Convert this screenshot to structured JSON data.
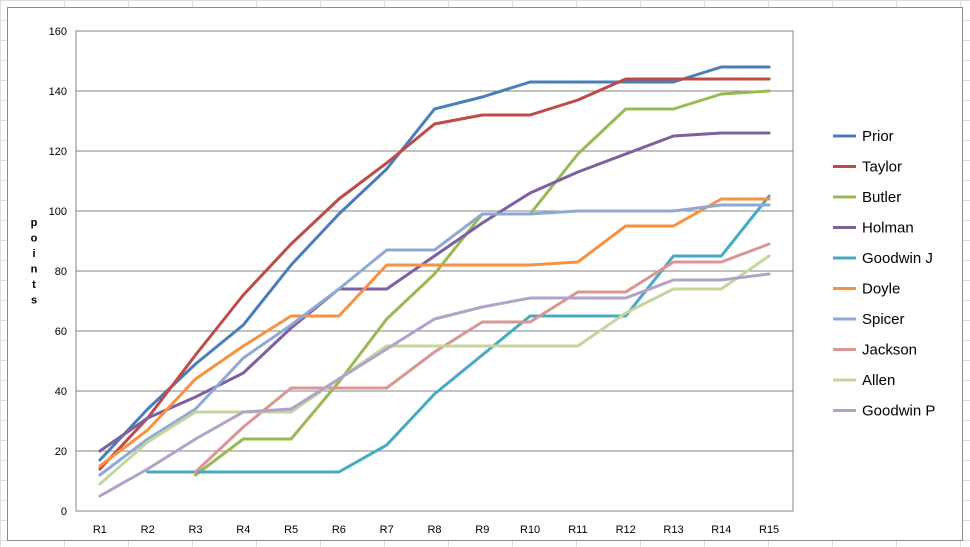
{
  "chart_data": {
    "type": "line",
    "title": "",
    "xlabel": "",
    "ylabel": "points",
    "ylim": [
      0,
      160
    ],
    "yticks": [
      0,
      20,
      40,
      60,
      80,
      100,
      120,
      140,
      160
    ],
    "grid": true,
    "legend_position": "right",
    "categories": [
      "R1",
      "R2",
      "R3",
      "R4",
      "R5",
      "R6",
      "R7",
      "R8",
      "R9",
      "R10",
      "R11",
      "R12",
      "R13",
      "R14",
      "R15"
    ],
    "series": [
      {
        "name": "Prior",
        "color": "#4a7ebb",
        "x": [
          "R1",
          "R2",
          "R3",
          "R4",
          "R5",
          "R6",
          "R7",
          "R8",
          "R9",
          "R10",
          "R11",
          "R12",
          "R13",
          "R14",
          "R15"
        ],
        "values": [
          17,
          34,
          49,
          62,
          82,
          99,
          114,
          134,
          138,
          143,
          143,
          143,
          143,
          148,
          148
        ]
      },
      {
        "name": "Taylor",
        "color": "#be4b48",
        "x": [
          "R1",
          "R2",
          "R3",
          "R4",
          "R5",
          "R6",
          "R7",
          "R8",
          "R9",
          "R10",
          "R11",
          "R12",
          "R13",
          "R14",
          "R15"
        ],
        "values": [
          14,
          31,
          52,
          72,
          89,
          104,
          116,
          129,
          132,
          132,
          137,
          144,
          144,
          144,
          144
        ]
      },
      {
        "name": "Butler",
        "color": "#98b954",
        "x": [
          "R3",
          "R4",
          "R5",
          "R6",
          "R7",
          "R8",
          "R9",
          "R10",
          "R11",
          "R12",
          "R13",
          "R14",
          "R15"
        ],
        "values": [
          12,
          24,
          24,
          43,
          64,
          79,
          99,
          99,
          119,
          134,
          134,
          139,
          140
        ]
      },
      {
        "name": "Holman",
        "color": "#7d60a0",
        "x": [
          "R1",
          "R2",
          "R3",
          "R4",
          "R5",
          "R6",
          "R7",
          "R8",
          "R9",
          "R10",
          "R11",
          "R12",
          "R13",
          "R14",
          "R15"
        ],
        "values": [
          20,
          31,
          38,
          46,
          61,
          74,
          74,
          85,
          96,
          106,
          113,
          119,
          125,
          126,
          126
        ]
      },
      {
        "name": "Goodwin J",
        "color": "#46aac5",
        "x": [
          "R2",
          "R3",
          "R4",
          "R5",
          "R6",
          "R7",
          "R8",
          "R9",
          "R10",
          "R11",
          "R12",
          "R13",
          "R14",
          "R15"
        ],
        "values": [
          13,
          13,
          13,
          13,
          13,
          22,
          39,
          52,
          65,
          65,
          65,
          85,
          85,
          105
        ]
      },
      {
        "name": "Doyle",
        "color": "#f69240",
        "x": [
          "R1",
          "R2",
          "R3",
          "R4",
          "R5",
          "R6",
          "R7",
          "R8",
          "R9",
          "R10",
          "R11",
          "R12",
          "R13",
          "R14",
          "R15"
        ],
        "values": [
          15,
          27,
          44,
          55,
          65,
          65,
          82,
          82,
          82,
          82,
          83,
          95,
          95,
          104,
          104
        ]
      },
      {
        "name": "Spicer",
        "color": "#8fa9d3",
        "x": [
          "R1",
          "R2",
          "R3",
          "R4",
          "R5",
          "R6",
          "R7",
          "R8",
          "R9",
          "R10",
          "R11",
          "R12",
          "R13",
          "R14",
          "R15"
        ],
        "values": [
          12,
          24,
          34,
          51,
          62,
          74,
          87,
          87,
          99,
          99,
          100,
          100,
          100,
          102,
          102
        ]
      },
      {
        "name": "Jackson",
        "color": "#d99694",
        "x": [
          "R3",
          "R4",
          "R5",
          "R6",
          "R7",
          "R8",
          "R9",
          "R10",
          "R11",
          "R12",
          "R13",
          "R14",
          "R15"
        ],
        "values": [
          13,
          28,
          41,
          41,
          41,
          53,
          63,
          63,
          73,
          73,
          83,
          83,
          89
        ]
      },
      {
        "name": "Allen",
        "color": "#c3d69b",
        "x": [
          "R1",
          "R2",
          "R3",
          "R4",
          "R5",
          "R6",
          "R7",
          "R8",
          "R9",
          "R10",
          "R11",
          "R12",
          "R13",
          "R14",
          "R15"
        ],
        "values": [
          9,
          23,
          33,
          33,
          33,
          44,
          55,
          55,
          55,
          55,
          55,
          66,
          74,
          74,
          85
        ]
      },
      {
        "name": "Goodwin P",
        "color": "#b3a2c7",
        "x": [
          "R1",
          "R2",
          "R3",
          "R4",
          "R5",
          "R6",
          "R7",
          "R8",
          "R9",
          "R10",
          "R11",
          "R12",
          "R13",
          "R14",
          "R15"
        ],
        "values": [
          5,
          14,
          24,
          33,
          34,
          44,
          54,
          64,
          68,
          71,
          71,
          71,
          77,
          77,
          79
        ]
      }
    ]
  }
}
